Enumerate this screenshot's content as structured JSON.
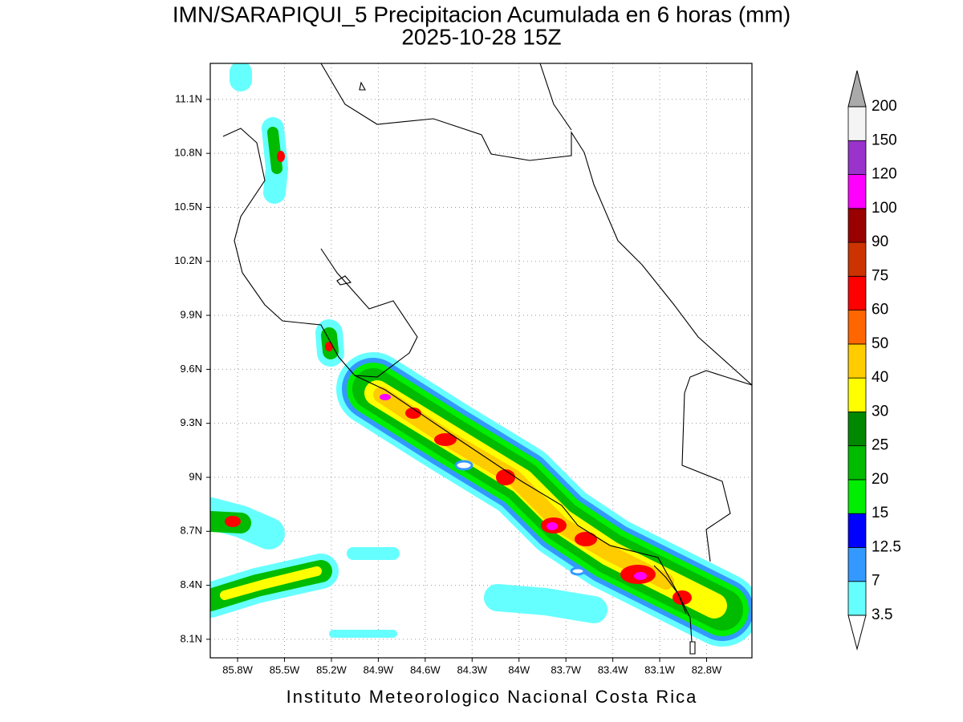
{
  "title": "IMN/SARAPIQUI_5 Precipitacion Acumulada en 6 horas (mm)",
  "subtitle": "2025-10-28 15Z",
  "footer": "Instituto Meteorologico Nacional Costa Rica",
  "map": {
    "xlim": [
      -85.975,
      -82.51
    ],
    "ylim": [
      7.997,
      11.3
    ],
    "grid": true,
    "xticks": [
      {
        "value": -85.8,
        "label": "85.8W"
      },
      {
        "value": -85.5,
        "label": "85.5W"
      },
      {
        "value": -85.2,
        "label": "85.2W"
      },
      {
        "value": -84.9,
        "label": "84.9W"
      },
      {
        "value": -84.6,
        "label": "84.6W"
      },
      {
        "value": -84.3,
        "label": "84.3W"
      },
      {
        "value": -84,
        "label": "84W"
      },
      {
        "value": -83.7,
        "label": "83.7W"
      },
      {
        "value": -83.4,
        "label": "83.4W"
      },
      {
        "value": -83.1,
        "label": "83.1W"
      },
      {
        "value": -82.8,
        "label": "82.8W"
      }
    ],
    "yticks": [
      {
        "value": 8.1,
        "label": "8.1N"
      },
      {
        "value": 8.4,
        "label": "8.4N"
      },
      {
        "value": 8.7,
        "label": "8.7N"
      },
      {
        "value": 9,
        "label": "9N"
      },
      {
        "value": 9.3,
        "label": "9.3N"
      },
      {
        "value": 9.6,
        "label": "9.6N"
      },
      {
        "value": 9.9,
        "label": "9.9N"
      },
      {
        "value": 10.2,
        "label": "10.2N"
      },
      {
        "value": 10.5,
        "label": "10.5N"
      },
      {
        "value": 10.8,
        "label": "10.8N"
      },
      {
        "value": 11.1,
        "label": "11.1N"
      }
    ]
  },
  "colorbar": {
    "levels": [
      3.5,
      7,
      12.5,
      15,
      20,
      25,
      30,
      40,
      50,
      60,
      75,
      90,
      100,
      120,
      150,
      200
    ],
    "colors": [
      "#66ffff",
      "#3399ff",
      "#0000ff",
      "#00ee00",
      "#00bb00",
      "#008800",
      "#ffff00",
      "#ffcc00",
      "#ff6600",
      "#ff0000",
      "#cc3300",
      "#990000",
      "#ff00ff",
      "#9933cc",
      "#f4f4f4"
    ],
    "over_color": "#aaaaaa",
    "under_color": "#ffffff"
  }
}
